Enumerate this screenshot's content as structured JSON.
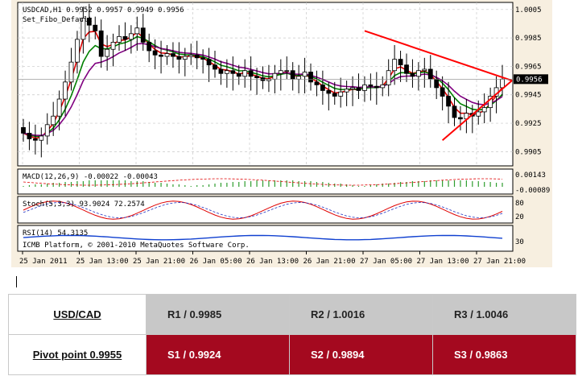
{
  "chart_data": [
    {
      "type": "candlestick",
      "title": "USDCAD,H1  0.9952 0.9957 0.9949 0.9956",
      "indicator_label": "Set_Fibo_Default",
      "current_price_label": "0.9956",
      "ylim": [
        0.9895,
        1.001
      ],
      "y_ticks": [
        "1.0005",
        "0.9985",
        "0.9965",
        "0.9945",
        "0.9925",
        "0.9905"
      ],
      "x_ticks": [
        "25 Jan 2011",
        "25 Jan 13:00",
        "25 Jan 21:00",
        "26 Jan 05:00",
        "26 Jan 13:00",
        "26 Jan 21:00",
        "27 Jan 05:00",
        "27 Jan 13:00",
        "27 Jan 21:00"
      ],
      "grid": true,
      "closes": [
        0.9918,
        0.9914,
        0.9913,
        0.9916,
        0.9924,
        0.993,
        0.9942,
        0.9954,
        0.9968,
        0.9984,
        0.9999,
        0.9994,
        0.999,
        0.9972,
        0.9977,
        0.9982,
        0.9986,
        0.9984,
        0.9988,
        0.9992,
        0.9982,
        0.9976,
        0.9973,
        0.9972,
        0.9974,
        0.9972,
        0.997,
        0.9972,
        0.9973,
        0.9971,
        0.997,
        0.9966,
        0.9963,
        0.996,
        0.9962,
        0.996,
        0.9958,
        0.9962,
        0.9958,
        0.9957,
        0.9955,
        0.9956,
        0.996,
        0.9962,
        0.9962,
        0.9956,
        0.9958,
        0.9961,
        0.9954,
        0.9952,
        0.9948,
        0.9946,
        0.9944,
        0.9947,
        0.9949,
        0.995,
        0.9948,
        0.9952,
        0.9951,
        0.995,
        0.9952,
        0.9962,
        0.997,
        0.9966,
        0.996,
        0.9958,
        0.9962,
        0.9963,
        0.9956,
        0.995,
        0.9944,
        0.9937,
        0.9929,
        0.9928,
        0.9932,
        0.993,
        0.9933,
        0.9936,
        0.9944,
        0.995,
        0.9956
      ],
      "ema_fast_label": "red",
      "ema_mid_label": "green",
      "ema_slow_label": "purple",
      "trendlines": [
        {
          "from": [
            "27 Jan 02:00",
            0.999
          ],
          "to": [
            "27 Jan 22:00",
            0.9955
          ]
        },
        {
          "from": [
            "27 Jan 13:00",
            0.9913
          ],
          "to": [
            "27 Jan 22:00",
            0.9955
          ]
        }
      ]
    },
    {
      "type": "histogram",
      "title": "MACD(12,26,9) -0.00022 -0.00043",
      "y_ticks": [
        "0.00143",
        "-0.00089"
      ]
    },
    {
      "type": "line",
      "title": "Stoch(5,3,3) 93.9024 72.2574",
      "y_ticks": [
        "80",
        "20"
      ]
    },
    {
      "type": "line",
      "title": "RSI(14) 54.3135",
      "y_ticks": [
        "30"
      ]
    }
  ],
  "copyright": "ICMB Platform, © 2001-2010 MetaQuotes Software Corp.",
  "colors": {
    "chart_bg": "#f7efe0",
    "plot_bg": "#ffffff",
    "grid": "#c8c8c8",
    "ema_fast": "#e00000",
    "ema_mid": "#008000",
    "ema_slow": "#800080",
    "trend": "#ff0000",
    "r_row": "#c8c8c8",
    "s_row": "#a4091f"
  },
  "pivot_table": {
    "pair": "USD/CAD",
    "pivot": "Pivot point 0.9955",
    "resistance": [
      "R1 / 0.9985",
      "R2 / 1.0016",
      "R3 / 1.0046"
    ],
    "support": [
      "S1 / 0.9924",
      "S2 / 0.9894",
      "S3 / 0.9863"
    ]
  }
}
